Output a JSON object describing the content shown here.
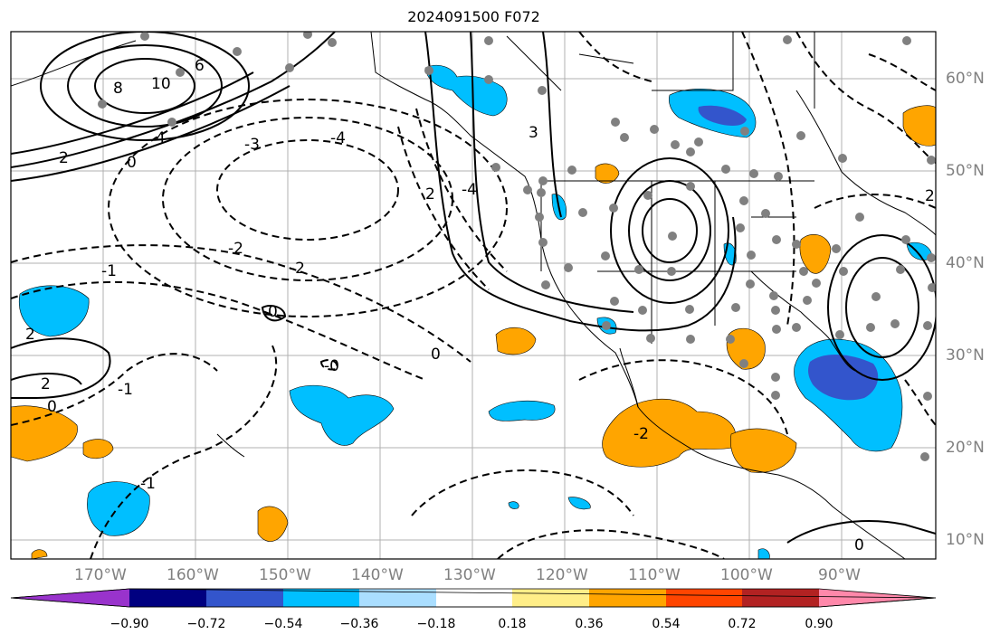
{
  "title": "2024091500 F072",
  "lat_labels": [
    "60°N",
    "50°N",
    "40°N",
    "30°N",
    "20°N",
    "10°N"
  ],
  "lon_labels": [
    "170°W",
    "160°W",
    "150°W",
    "140°W",
    "130°W",
    "120°W",
    "110°W",
    "100°W",
    "90°W"
  ],
  "contour_labels": [
    "10",
    "8",
    "6",
    "4",
    "2",
    "0",
    "-4",
    "-3",
    "-2",
    "-1",
    "0",
    "-1",
    "2",
    "0",
    "-0",
    "0",
    "-1",
    "-4",
    "3",
    "2",
    "-2",
    "2",
    "-2",
    "0",
    "2"
  ],
  "colorbar": {
    "colors": [
      "#9933cc",
      "#000080",
      "#3355cc",
      "#00bfff",
      "#aadeff",
      "#ffffff",
      "#ffee88",
      "#ffa500",
      "#ff4500",
      "#b22222",
      "#ff88aa"
    ],
    "ticks": [
      "−0.90",
      "−0.72",
      "−0.54",
      "−0.36",
      "−0.18",
      "0.18",
      "0.36",
      "0.54",
      "0.72",
      "0.90"
    ]
  }
}
